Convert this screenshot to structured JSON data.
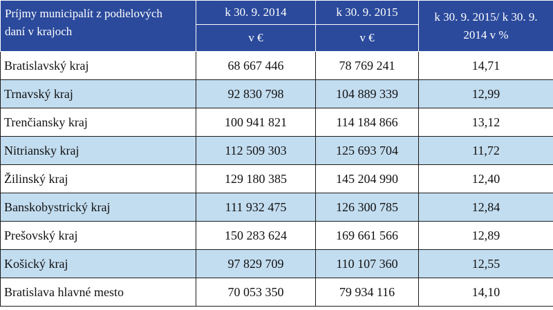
{
  "table": {
    "header": {
      "title_line1": "Príjmy municipalít z podielových",
      "title_line2": "daní v krajoch",
      "col_2014": "k 30. 9. 2014",
      "col_2015": "k 30. 9. 2015",
      "unit_2014": "v €",
      "unit_2015": "v €",
      "ratio_line1": "k 30. 9. 2015/ k 30. 9.",
      "ratio_line2": "2014 v %"
    },
    "rows": [
      {
        "region": "Bratislavský kraj",
        "v2014": "68 667 446",
        "v2015": "78 769 241",
        "pct": "14,71"
      },
      {
        "region": "Trnavský kraj",
        "v2014": "92 830 798",
        "v2015": "104 889 339",
        "pct": "12,99"
      },
      {
        "region": "Trenčiansky kraj",
        "v2014": "100 941 821",
        "v2015": "114 184 866",
        "pct": "13,12"
      },
      {
        "region": "Nitriansky kraj",
        "v2014": "112 509 303",
        "v2015": "125 693 704",
        "pct": "11,72"
      },
      {
        "region": "Žilinský kraj",
        "v2014": "129 180 385",
        "v2015": "145 204 990",
        "pct": "12,40"
      },
      {
        "region": "Banskobystrický kraj",
        "v2014": "111 932 475",
        "v2015": "126 300 785",
        "pct": "12,84"
      },
      {
        "region": "Prešovský kraj",
        "v2014": "150 283 624",
        "v2015": "169 661 566",
        "pct": "12,89"
      },
      {
        "region": "Košický kraj",
        "v2014": "97 829 709",
        "v2015": "110 107 360",
        "pct": "12,55"
      },
      {
        "region": "Bratislava hlavné mesto",
        "v2014": "70 053 350",
        "v2015": "79 934 116",
        "pct": "14,10"
      }
    ]
  },
  "colors": {
    "header_bg": "#2b4a9c",
    "alt_row_bg": "#c3ddf0",
    "row_bg": "#ffffff"
  }
}
